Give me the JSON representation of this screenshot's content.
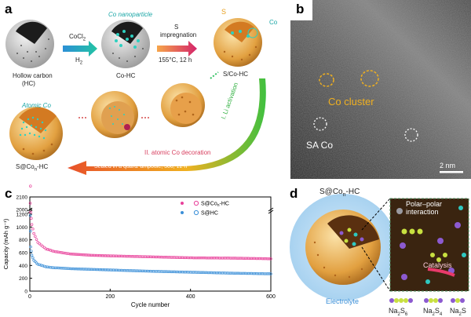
{
  "panel_a": {
    "label": "a",
    "hollow_carbon": "Hollow carbon",
    "hc": "(HC)",
    "cocl2": "CoCl",
    "cocl2_sub": "2",
    "h2": "H",
    "h2_sub": "2",
    "co_nanoparticle": "Co nanoparticle",
    "co_hc": "Co-HC",
    "s_impregnation_1": "S",
    "s_impregnation_2": "impregnation",
    "temp": "155°C, 12 h",
    "s_label": "S",
    "co_label": "Co",
    "s_co_hc": "S/Co-HC",
    "li_activation": "I. Li activation",
    "atomic_co": "Atomic Co",
    "atomic_decoration": "II. atomic Co decoration",
    "sealed": "Sealed in a quartz ampoule, 300, 12 h",
    "final": "S@Co",
    "final_sub": "n",
    "final_suffix": "-HC"
  },
  "panel_b": {
    "label": "b",
    "co_cluster": "Co cluster",
    "sa_co": "SA  Co",
    "scale": "2 nm"
  },
  "panel_c": {
    "label": "c",
    "chart_data": {
      "type": "scatter",
      "xlabel": "Cycle number",
      "ylabel": "Capacity (mAh g⁻¹)",
      "xlim": [
        0,
        600
      ],
      "ylim_lower": [
        0,
        1200
      ],
      "ylim_upper": [
        2000,
        2100
      ],
      "x_ticks": [
        "0",
        "200",
        "400",
        "600"
      ],
      "y_ticks": [
        "0",
        "200",
        "400",
        "600",
        "800",
        "1000",
        "1200",
        "2000",
        "2100"
      ],
      "legend_placement": "top-right",
      "series": [
        {
          "name": "S@Co",
          "name_sub": "n",
          "name_suffix": "-HC",
          "color": "#e8409a",
          "x": [
            1,
            2,
            5,
            10,
            20,
            40,
            60,
            100,
            150,
            200,
            300,
            400,
            500,
            600
          ],
          "y": [
            2050,
            1230,
            1040,
            900,
            760,
            660,
            620,
            580,
            560,
            550,
            535,
            520,
            515,
            505
          ]
        },
        {
          "name": "S@HC",
          "color": "#3a8fd8",
          "x": [
            1,
            2,
            5,
            10,
            20,
            40,
            60,
            100,
            150,
            200,
            300,
            400,
            500,
            600
          ],
          "y": [
            1180,
            690,
            560,
            480,
            420,
            380,
            365,
            350,
            340,
            330,
            310,
            295,
            280,
            270
          ]
        }
      ]
    }
  },
  "panel_d": {
    "label": "d",
    "title": "S@Co",
    "title_sub": "n",
    "title_suffix": "-HC",
    "polar_1": "Polar–polar",
    "polar_2": "interaction",
    "catalysis": "Catalysis",
    "electrolyte": "Electrolyte",
    "na2s6": "Na",
    "na2s6_sub": "2",
    "na2s6_s": "S",
    "na2s6_sub2": "6",
    "na2s4": "Na",
    "na2s4_sub": "2",
    "na2s4_s": "S",
    "na2s4_sub2": "4",
    "na2s": "Na",
    "na2s_sub": "2",
    "na2s_s": "S"
  }
}
